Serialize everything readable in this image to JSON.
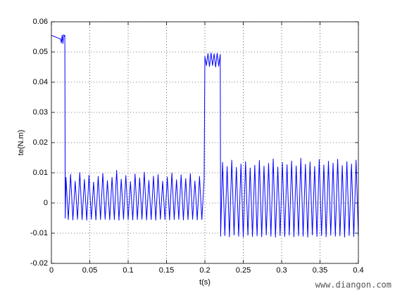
{
  "chart_data": {
    "type": "line",
    "x_label": "t(s)",
    "y_label": "te(N.m)",
    "watermark": "www.diangon.com",
    "xlim": [
      0,
      0.4
    ],
    "xticks": [
      0,
      0.05,
      0.1,
      0.15,
      0.2,
      0.25,
      0.3,
      0.35,
      0.4
    ],
    "ylim": [
      -0.02,
      0.06
    ],
    "yticks": [
      -0.02,
      -0.01,
      0,
      0.01,
      0.02,
      0.03,
      0.04,
      0.05,
      0.06
    ],
    "grid": true,
    "series": [
      {
        "color": "#0000ff",
        "x": [
          0,
          0.004,
          0.008,
          0.012,
          0.013,
          0.014,
          0.015,
          0.016,
          0.017,
          0.0175,
          0.018,
          0.019,
          0.022,
          0.025,
          0.028,
          0.031,
          0.034,
          0.037,
          0.04,
          0.043,
          0.046,
          0.049,
          0.052,
          0.055,
          0.058,
          0.061,
          0.064,
          0.067,
          0.07,
          0.073,
          0.076,
          0.079,
          0.082,
          0.085,
          0.088,
          0.091,
          0.094,
          0.097,
          0.1,
          0.103,
          0.106,
          0.109,
          0.112,
          0.115,
          0.118,
          0.121,
          0.124,
          0.127,
          0.13,
          0.133,
          0.136,
          0.139,
          0.142,
          0.145,
          0.148,
          0.151,
          0.154,
          0.157,
          0.16,
          0.163,
          0.166,
          0.169,
          0.172,
          0.175,
          0.178,
          0.181,
          0.184,
          0.187,
          0.19,
          0.193,
          0.196,
          0.199,
          0.2,
          0.202,
          0.204,
          0.206,
          0.208,
          0.21,
          0.212,
          0.214,
          0.216,
          0.218,
          0.22,
          0.2205,
          0.223,
          0.226,
          0.229,
          0.232,
          0.235,
          0.238,
          0.241,
          0.244,
          0.247,
          0.25,
          0.253,
          0.256,
          0.259,
          0.262,
          0.265,
          0.268,
          0.271,
          0.274,
          0.277,
          0.28,
          0.283,
          0.286,
          0.289,
          0.292,
          0.295,
          0.298,
          0.301,
          0.304,
          0.307,
          0.31,
          0.313,
          0.316,
          0.319,
          0.322,
          0.325,
          0.328,
          0.331,
          0.334,
          0.337,
          0.34,
          0.343,
          0.346,
          0.349,
          0.352,
          0.355,
          0.358,
          0.361,
          0.364,
          0.367,
          0.37,
          0.373,
          0.376,
          0.379,
          0.382,
          0.385,
          0.388,
          0.391,
          0.394,
          0.397,
          0.4
        ],
        "values": [
          0.0555,
          0.0551,
          0.0547,
          0.0543,
          0.053,
          0.0556,
          0.0528,
          0.0557,
          0.0552,
          0.0555,
          -0.005,
          0.0085,
          -0.0055,
          0.0095,
          -0.0056,
          0.0072,
          -0.0054,
          0.0101,
          -0.0055,
          0.0078,
          -0.0057,
          0.0092,
          -0.0054,
          0.0069,
          -0.0056,
          0.0088,
          -0.0055,
          0.0098,
          -0.0054,
          0.0074,
          -0.0056,
          0.0085,
          -0.0055,
          0.0108,
          -0.0057,
          0.0079,
          -0.0054,
          0.0091,
          -0.0055,
          0.0071,
          -0.0056,
          0.0096,
          -0.0055,
          0.0083,
          -0.0054,
          0.0102,
          -0.0056,
          0.0075,
          -0.0055,
          0.0089,
          -0.0057,
          0.0094,
          -0.0054,
          0.0072,
          -0.0055,
          0.0086,
          -0.0056,
          0.0099,
          -0.0055,
          0.0077,
          -0.0054,
          0.0093,
          -0.0056,
          0.0081,
          -0.0055,
          0.0097,
          -0.0054,
          0.0073,
          -0.0056,
          0.0088,
          -0.0055,
          0.0079,
          0.0485,
          0.0455,
          0.0495,
          0.0452,
          0.0497,
          0.0455,
          0.0494,
          0.045,
          0.0496,
          0.0453,
          0.0492,
          -0.011,
          0.0135,
          -0.0108,
          0.0121,
          -0.0112,
          0.0142,
          -0.0106,
          0.0118,
          -0.011,
          0.0129,
          -0.0113,
          0.0137,
          -0.0107,
          0.0116,
          -0.0111,
          0.0125,
          -0.0109,
          0.0141,
          -0.0112,
          0.0122,
          -0.0106,
          0.0131,
          -0.011,
          0.0146,
          -0.0113,
          0.0119,
          -0.0108,
          0.0134,
          -0.0111,
          0.0127,
          -0.0107,
          0.0139,
          -0.0112,
          0.0123,
          -0.0109,
          0.0148,
          -0.011,
          0.0128,
          -0.0113,
          0.0136,
          -0.0106,
          0.0121,
          -0.0111,
          0.0144,
          -0.0108,
          0.0126,
          -0.0112,
          0.0138,
          -0.0107,
          0.0132,
          -0.011,
          0.0145,
          -0.0109,
          0.0124,
          -0.0113,
          0.0137,
          -0.0108,
          0.0129,
          -0.0111,
          0.0142,
          -0.011
        ]
      }
    ]
  }
}
